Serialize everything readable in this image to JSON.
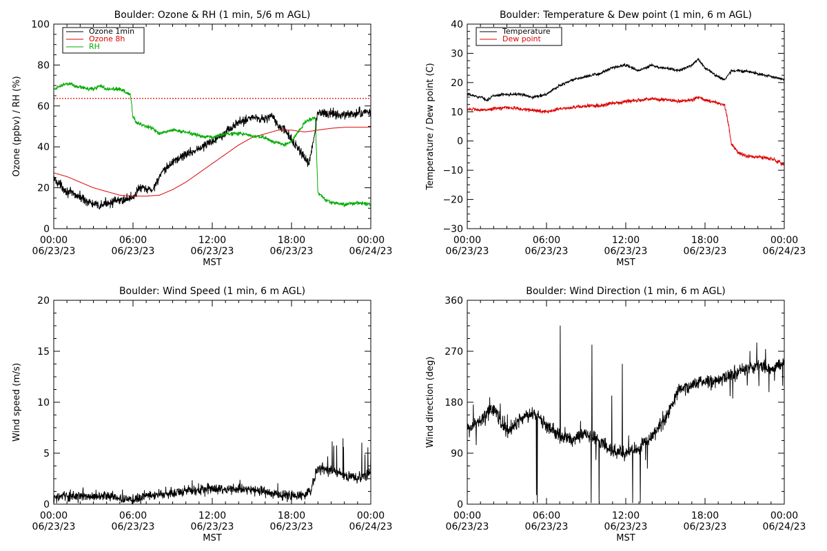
{
  "chart_data": [
    {
      "type": "line",
      "title": "Boulder: Ozone & RH (1 min, 5/6 m AGL)",
      "xlabel": "MST",
      "ylabel": "Ozone (ppbv) / RH (%)",
      "ylim": [
        0,
        110
      ],
      "yticks": [
        "0",
        "20",
        "40",
        "60",
        "80",
        "100"
      ],
      "xtick_times": [
        "00:00",
        "06:00",
        "12:00",
        "18:00",
        "00:00"
      ],
      "xtick_dates": [
        "06/23/23",
        "06/23/23",
        "06/23/23",
        "06/23/23",
        "06/24/23"
      ],
      "legend": {
        "placement": "top-left",
        "entries": [
          "Ozone 1min",
          "Ozone 8h",
          "RH"
        ]
      },
      "reference_line": {
        "y": 70,
        "color": "#dd0000",
        "style": "dotted"
      },
      "series": [
        {
          "name": "Ozone 1min",
          "color": "#000000",
          "noise": 2.5,
          "x": [
            0,
            1,
            2,
            3,
            3.5,
            4,
            5,
            6,
            6.5,
            7,
            7.5,
            8,
            9,
            10,
            11,
            12,
            13,
            14,
            15,
            16,
            16.5,
            17,
            17.5,
            18,
            18.5,
            19,
            19.3,
            19.5,
            20,
            21,
            22,
            23,
            24
          ],
          "y": [
            27,
            20,
            17,
            13,
            12,
            14,
            15,
            17,
            22,
            21,
            21,
            28,
            36,
            40,
            43,
            47,
            52,
            57,
            60,
            59,
            61,
            55,
            53,
            48,
            43,
            38,
            34,
            41,
            62,
            62,
            61,
            62,
            63
          ]
        },
        {
          "name": "Ozone 8h",
          "color": "#dd0000",
          "noise": 0,
          "x": [
            0,
            1,
            2,
            3,
            4,
            5,
            6,
            7,
            8,
            9,
            10,
            11,
            12,
            13,
            14,
            15,
            16,
            17,
            18,
            19,
            20,
            21,
            22,
            23,
            24
          ],
          "y": [
            30,
            28,
            25,
            22,
            20,
            18,
            17.5,
            17.5,
            18,
            21,
            25,
            30,
            35,
            40,
            45,
            49,
            51,
            53,
            53,
            52,
            53,
            54,
            54.5,
            54.5,
            54.5
          ]
        },
        {
          "name": "RH",
          "color": "#00aa00",
          "noise": 1,
          "x": [
            0,
            0.5,
            1,
            2,
            3,
            3.5,
            4,
            5,
            5.8,
            6,
            6.3,
            7,
            7.5,
            8,
            9,
            10,
            11,
            12,
            13,
            14,
            15,
            16,
            16.5,
            17,
            17.5,
            18,
            19,
            19.5,
            19.8,
            20,
            20.5,
            21,
            22,
            23,
            24
          ],
          "y": [
            75,
            77,
            78,
            76,
            75,
            77,
            75,
            75,
            72,
            60,
            57,
            55,
            54,
            51,
            53,
            52,
            50,
            49,
            51,
            51,
            50,
            49,
            47,
            46,
            45,
            47,
            57,
            59,
            60,
            19,
            16,
            14,
            13,
            14,
            13
          ]
        }
      ]
    },
    {
      "type": "line",
      "title": "Boulder: Temperature & Dew point (1 min, 6 m AGL)",
      "xlabel": "MST",
      "ylabel": "Temperature / Dew point (C)",
      "ylim": [
        -30,
        40
      ],
      "yticks": [
        "−30",
        "−20",
        "−10",
        "0",
        "10",
        "20",
        "30",
        "40"
      ],
      "xtick_times": [
        "00:00",
        "06:00",
        "12:00",
        "18:00",
        "00:00"
      ],
      "xtick_dates": [
        "06/23/23",
        "06/23/23",
        "06/23/23",
        "06/23/23",
        "06/24/23"
      ],
      "legend": {
        "placement": "top-left",
        "entries": [
          "Temperature",
          "Dew point"
        ]
      },
      "series": [
        {
          "name": "Temperature",
          "color": "#000000",
          "noise": 0.5,
          "x": [
            0,
            1,
            1.5,
            2,
            3,
            4,
            5,
            6,
            7,
            8,
            9,
            10,
            11,
            12,
            13,
            14,
            14.5,
            15,
            16,
            17,
            17.5,
            18,
            19,
            19.5,
            20,
            21,
            22,
            23,
            24
          ],
          "y": [
            16,
            15,
            14,
            15.5,
            16,
            16,
            15,
            16,
            19,
            21,
            22,
            23,
            25,
            26,
            24,
            26,
            25,
            25,
            24,
            26,
            28,
            25,
            22,
            21,
            24,
            24,
            23,
            22,
            21
          ]
        },
        {
          "name": "Dew point",
          "color": "#dd0000",
          "noise": 0.6,
          "x": [
            0,
            1,
            2,
            3,
            4,
            5,
            6,
            7,
            8,
            9,
            10,
            11,
            12,
            13,
            14,
            15,
            16,
            17,
            17.5,
            18,
            19,
            19.5,
            19.8,
            20,
            20.5,
            21,
            22,
            23,
            24
          ],
          "y": [
            11,
            10.5,
            11,
            11.5,
            11,
            10.5,
            10,
            11,
            11.5,
            12,
            12,
            13,
            13.5,
            14,
            14.5,
            14,
            13.5,
            14,
            15,
            14,
            13,
            12,
            5,
            -1,
            -4,
            -5,
            -5.5,
            -6,
            -8
          ]
        }
      ]
    },
    {
      "type": "line",
      "title": "Boulder: Wind Speed (1 min, 6 m AGL)",
      "xlabel": "MST",
      "ylabel": "Wind speed (m/s)",
      "ylim": [
        0,
        20
      ],
      "yticks": [
        "0",
        "5",
        "10",
        "15",
        "20"
      ],
      "xtick_times": [
        "00:00",
        "06:00",
        "12:00",
        "18:00",
        "00:00"
      ],
      "xtick_dates": [
        "06/23/23",
        "06/23/23",
        "06/23/23",
        "06/23/23",
        "06/24/23"
      ],
      "series": [
        {
          "color": "#000000",
          "noise": 0.5,
          "x": [
            0,
            1,
            2,
            3,
            4,
            5,
            6,
            7,
            8,
            9,
            10,
            11,
            12,
            13,
            14,
            15,
            16,
            17,
            18,
            19,
            19.5,
            20,
            21,
            22,
            23,
            24
          ],
          "y": [
            0.6,
            0.8,
            0.8,
            0.7,
            0.9,
            0.5,
            0.4,
            0.8,
            1.0,
            1.1,
            1.3,
            1.4,
            1.5,
            1.4,
            1.5,
            1.4,
            1.2,
            0.9,
            0.8,
            0.9,
            1.5,
            3.5,
            3.3,
            2.8,
            2.6,
            3.0
          ]
        }
      ]
    },
    {
      "type": "line",
      "title": "Boulder: Wind Direction (1 min, 6 m AGL)",
      "xlabel": "MST",
      "ylabel": "Wind direction (deg)",
      "ylim": [
        0,
        360
      ],
      "yticks": [
        "0",
        "90",
        "180",
        "270",
        "360"
      ],
      "xtick_times": [
        "00:00",
        "06:00",
        "12:00",
        "18:00",
        "00:00"
      ],
      "xtick_dates": [
        "06/23/23",
        "06/23/23",
        "06/23/23",
        "06/23/23",
        "06/24/23"
      ],
      "series": [
        {
          "color": "#000000",
          "noise": 12,
          "x": [
            0,
            1,
            2,
            3,
            4,
            5,
            6,
            7,
            8,
            9,
            10,
            11,
            12,
            13,
            14,
            15,
            16,
            17,
            18,
            19,
            20,
            21,
            22,
            23,
            24
          ],
          "y": [
            130,
            150,
            170,
            125,
            150,
            160,
            140,
            120,
            115,
            125,
            110,
            95,
            90,
            100,
            120,
            150,
            200,
            210,
            215,
            220,
            230,
            240,
            245,
            240,
            250
          ]
        }
      ]
    }
  ]
}
